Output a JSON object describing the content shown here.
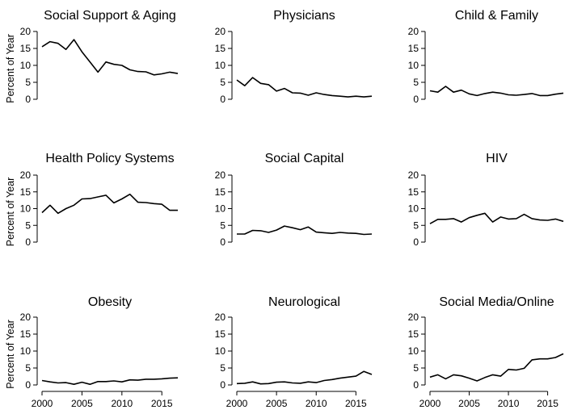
{
  "chart_data": [
    {
      "type": "line",
      "title": "Social Support & Aging",
      "ylabel": "Percent of Year",
      "xlabel": "",
      "xlim": [
        2000,
        2017
      ],
      "ylim": [
        0,
        20
      ],
      "yticks": [
        0,
        5,
        10,
        15,
        20
      ],
      "xticks": [
        2000,
        2005,
        2010,
        2015
      ],
      "x": [
        2000,
        2001,
        2002,
        2003,
        2004,
        2005,
        2006,
        2007,
        2008,
        2009,
        2010,
        2011,
        2012,
        2013,
        2014,
        2015,
        2016,
        2017
      ],
      "values": [
        15.5,
        17,
        16.5,
        14.7,
        17.6,
        14,
        11,
        8,
        11,
        10.3,
        10,
        8.7,
        8.2,
        8.1,
        7.2,
        7.5,
        8,
        7.6
      ]
    },
    {
      "type": "line",
      "title": "Physicians",
      "ylabel": "",
      "xlabel": "",
      "xlim": [
        2000,
        2017
      ],
      "ylim": [
        0,
        20
      ],
      "yticks": [
        0,
        5,
        10,
        15,
        20
      ],
      "xticks": [
        2000,
        2005,
        2010,
        2015
      ],
      "x": [
        2000,
        2001,
        2002,
        2003,
        2004,
        2005,
        2006,
        2007,
        2008,
        2009,
        2010,
        2011,
        2012,
        2013,
        2014,
        2015,
        2016,
        2017
      ],
      "values": [
        5.7,
        4,
        6.4,
        4.7,
        4.3,
        2.4,
        3.2,
        1.9,
        1.8,
        1.2,
        1.9,
        1.4,
        1.1,
        0.9,
        0.7,
        0.9,
        0.7,
        0.9
      ]
    },
    {
      "type": "line",
      "title": "Child & Family",
      "ylabel": "",
      "xlabel": "",
      "xlim": [
        2000,
        2017
      ],
      "ylim": [
        0,
        20
      ],
      "yticks": [
        0,
        5,
        10,
        15,
        20
      ],
      "xticks": [
        2000,
        2005,
        2010,
        2015
      ],
      "x": [
        2000,
        2001,
        2002,
        2003,
        2004,
        2005,
        2006,
        2007,
        2008,
        2009,
        2010,
        2011,
        2012,
        2013,
        2014,
        2015,
        2016,
        2017
      ],
      "values": [
        2.5,
        2.1,
        3.8,
        2.1,
        2.7,
        1.6,
        1.1,
        1.7,
        2.1,
        1.8,
        1.3,
        1.2,
        1.4,
        1.7,
        1.1,
        1.1,
        1.5,
        1.8
      ]
    },
    {
      "type": "line",
      "title": "Health Policy Systems",
      "ylabel": "Percent of Year",
      "xlabel": "",
      "xlim": [
        2000,
        2017
      ],
      "ylim": [
        0,
        20
      ],
      "yticks": [
        0,
        5,
        10,
        15,
        20
      ],
      "xticks": [
        2000,
        2005,
        2010,
        2015
      ],
      "x": [
        2000,
        2001,
        2002,
        2003,
        2004,
        2005,
        2006,
        2007,
        2008,
        2009,
        2010,
        2011,
        2012,
        2013,
        2014,
        2015,
        2016,
        2017
      ],
      "values": [
        8.8,
        11,
        8.6,
        10,
        11,
        12.9,
        13,
        13.5,
        14,
        11.7,
        12.9,
        14.3,
        11.9,
        11.8,
        11.5,
        11.3,
        9.5,
        9.5
      ]
    },
    {
      "type": "line",
      "title": "Social Capital",
      "ylabel": "",
      "xlabel": "",
      "xlim": [
        2000,
        2017
      ],
      "ylim": [
        0,
        20
      ],
      "yticks": [
        0,
        5,
        10,
        15,
        20
      ],
      "xticks": [
        2000,
        2005,
        2010,
        2015
      ],
      "x": [
        2000,
        2001,
        2002,
        2003,
        2004,
        2005,
        2006,
        2007,
        2008,
        2009,
        2010,
        2011,
        2012,
        2013,
        2014,
        2015,
        2016,
        2017
      ],
      "values": [
        2.4,
        2.4,
        3.5,
        3.4,
        2.9,
        3.6,
        4.8,
        4.3,
        3.7,
        4.5,
        3,
        2.8,
        2.6,
        2.9,
        2.7,
        2.6,
        2.3,
        2.4
      ]
    },
    {
      "type": "line",
      "title": "HIV",
      "ylabel": "",
      "xlabel": "",
      "xlim": [
        2000,
        2017
      ],
      "ylim": [
        0,
        20
      ],
      "yticks": [
        0,
        5,
        10,
        15,
        20
      ],
      "xticks": [
        2000,
        2005,
        2010,
        2015
      ],
      "x": [
        2000,
        2001,
        2002,
        2003,
        2004,
        2005,
        2006,
        2007,
        2008,
        2009,
        2010,
        2011,
        2012,
        2013,
        2014,
        2015,
        2016,
        2017
      ],
      "values": [
        5.5,
        6.8,
        6.8,
        7,
        6,
        7.3,
        8,
        8.6,
        6,
        7.5,
        6.9,
        7,
        8.3,
        7,
        6.6,
        6.5,
        6.9,
        6.2
      ]
    },
    {
      "type": "line",
      "title": "Obesity",
      "ylabel": "Percent of Year",
      "xlabel": "",
      "xlim": [
        2000,
        2017
      ],
      "ylim": [
        0,
        20
      ],
      "yticks": [
        0,
        5,
        10,
        15,
        20
      ],
      "xticks": [
        2000,
        2005,
        2010,
        2015
      ],
      "x": [
        2000,
        2001,
        2002,
        2003,
        2004,
        2005,
        2006,
        2007,
        2008,
        2009,
        2010,
        2011,
        2012,
        2013,
        2014,
        2015,
        2016,
        2017
      ],
      "values": [
        1.3,
        0.9,
        0.6,
        0.7,
        0.2,
        0.8,
        0.2,
        1,
        1,
        1.2,
        0.9,
        1.5,
        1.4,
        1.7,
        1.7,
        1.8,
        2,
        2.1
      ]
    },
    {
      "type": "line",
      "title": "Neurological",
      "ylabel": "",
      "xlabel": "",
      "xlim": [
        2000,
        2017
      ],
      "ylim": [
        0,
        20
      ],
      "yticks": [
        0,
        5,
        10,
        15,
        20
      ],
      "xticks": [
        2000,
        2005,
        2010,
        2015
      ],
      "x": [
        2000,
        2001,
        2002,
        2003,
        2004,
        2005,
        2006,
        2007,
        2008,
        2009,
        2010,
        2011,
        2012,
        2013,
        2014,
        2015,
        2016,
        2017
      ],
      "values": [
        0.4,
        0.5,
        0.9,
        0.3,
        0.4,
        0.8,
        0.9,
        0.6,
        0.5,
        0.9,
        0.7,
        1.3,
        1.6,
        2,
        2.3,
        2.6,
        4,
        3.1
      ]
    },
    {
      "type": "line",
      "title": "Social Media/Online",
      "ylabel": "",
      "xlabel": "",
      "xlim": [
        2000,
        2017
      ],
      "ylim": [
        0,
        20
      ],
      "yticks": [
        0,
        5,
        10,
        15,
        20
      ],
      "xticks": [
        2000,
        2005,
        2010,
        2015
      ],
      "x": [
        2000,
        2001,
        2002,
        2003,
        2004,
        2005,
        2006,
        2007,
        2008,
        2009,
        2010,
        2011,
        2012,
        2013,
        2014,
        2015,
        2016,
        2017
      ],
      "values": [
        2.3,
        3,
        1.8,
        3,
        2.7,
        2,
        1.2,
        2.2,
        3,
        2.6,
        4.6,
        4.4,
        4.9,
        7.4,
        7.7,
        7.7,
        8.1,
        9.2
      ]
    }
  ]
}
